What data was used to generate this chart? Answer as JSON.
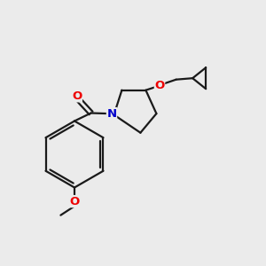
{
  "bg_color": "#ebebeb",
  "bond_color": "#1a1a1a",
  "line_width": 1.6,
  "atom_colors": {
    "O": "#ee0000",
    "N": "#0000cc",
    "C": "#1a1a1a"
  },
  "font_size": 9.5,
  "xlim": [
    0,
    10
  ],
  "ylim": [
    0,
    10
  ]
}
